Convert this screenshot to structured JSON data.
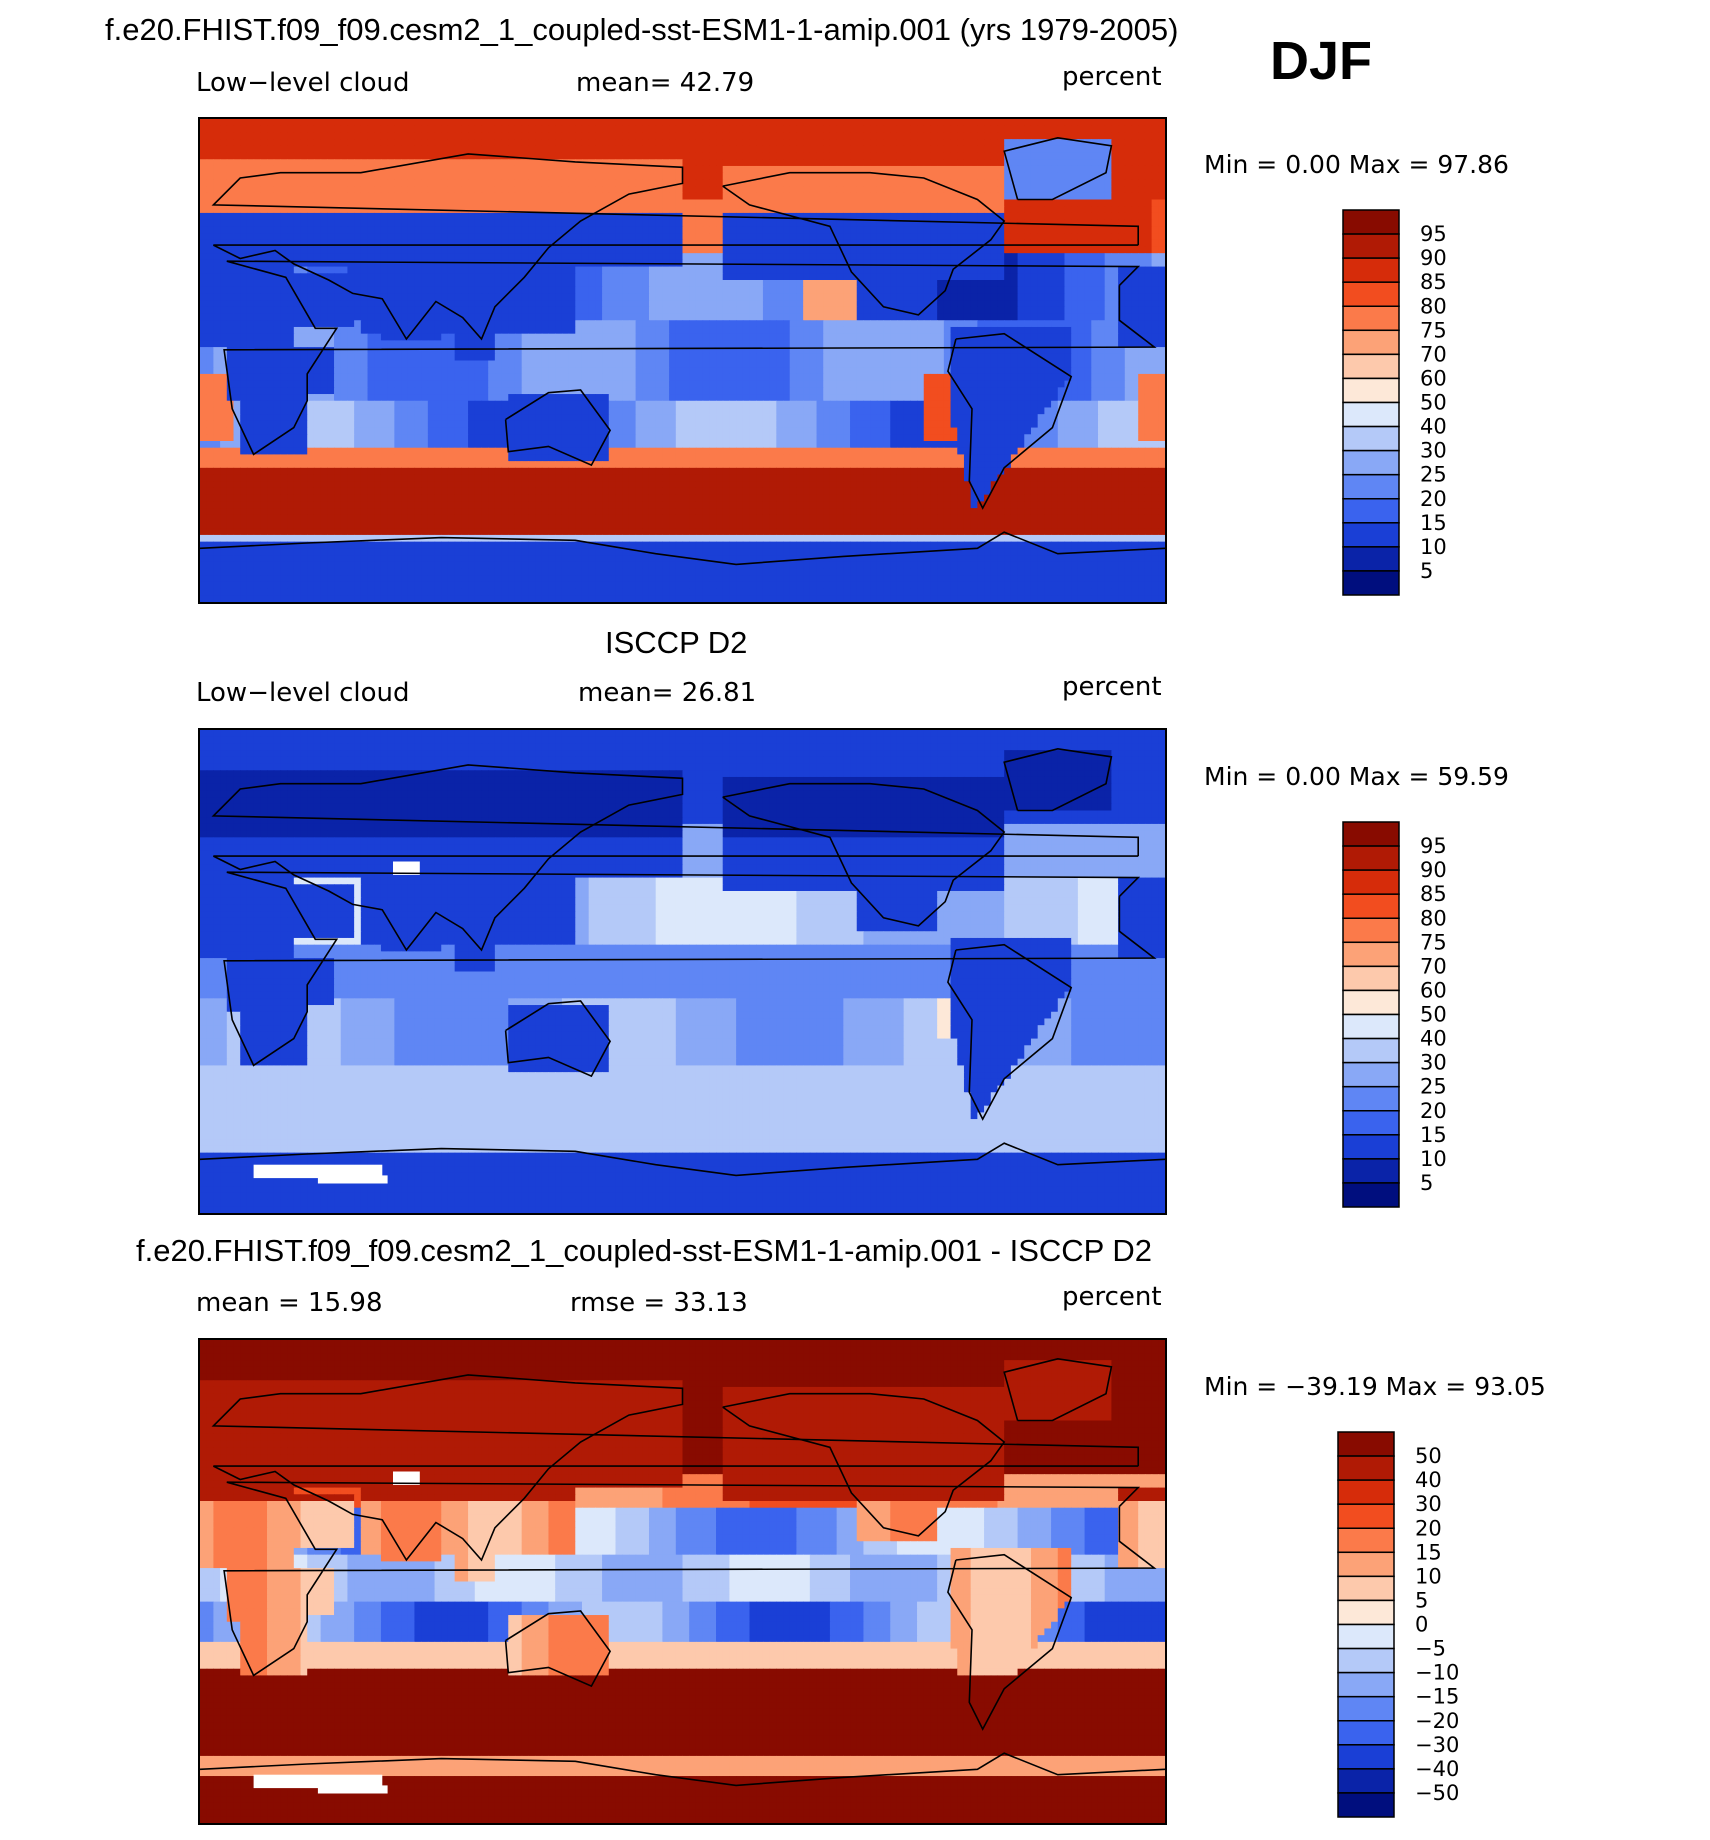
{
  "season": "DJF",
  "chart_data": [
    {
      "type": "heatmap",
      "title": "f.e20.FHIST.f09_f09.cesm2_1_coupled-sst-ESM1-1-amip.001 (yrs 1979-2005)",
      "left_label": "Low−level cloud",
      "stat_label": "mean=   42.79",
      "units": "percent",
      "stat_name": "mean",
      "stat_value": 42.79,
      "min_max_text": "Min =    0.00 Max =   97.86",
      "min": 0.0,
      "max": 97.86,
      "levels": [
        5,
        10,
        15,
        20,
        25,
        30,
        40,
        50,
        60,
        70,
        75,
        80,
        85,
        90,
        95
      ],
      "level_labels": [
        "5",
        "10",
        "15",
        "20",
        "25",
        "30",
        "40",
        "50",
        "60",
        "70",
        "75",
        "80",
        "85",
        "90",
        "95"
      ],
      "colors": [
        "#000e7e",
        "#0a23a8",
        "#1a3fd6",
        "#3a63ee",
        "#5f86f4",
        "#89a8f6",
        "#b4c9f8",
        "#dce8fb",
        "#fde8d8",
        "#fdc9ac",
        "#fca277",
        "#fb7a4a",
        "#f24d1f",
        "#d62c0a",
        "#b01a05",
        "#880b00"
      ],
      "map_type": "model"
    },
    {
      "type": "heatmap",
      "title": "ISCCP D2",
      "left_label": "Low−level cloud",
      "stat_label": "mean=   26.81",
      "units": "percent",
      "stat_name": "mean",
      "stat_value": 26.81,
      "min_max_text": "Min =    0.00 Max =   59.59",
      "min": 0.0,
      "max": 59.59,
      "levels": [
        5,
        10,
        15,
        20,
        25,
        30,
        40,
        50,
        60,
        70,
        75,
        80,
        85,
        90,
        95
      ],
      "level_labels": [
        "5",
        "10",
        "15",
        "20",
        "25",
        "30",
        "40",
        "50",
        "60",
        "70",
        "75",
        "80",
        "85",
        "90",
        "95"
      ],
      "colors": [
        "#000e7e",
        "#0a23a8",
        "#1a3fd6",
        "#3a63ee",
        "#5f86f4",
        "#89a8f6",
        "#b4c9f8",
        "#dce8fb",
        "#fde8d8",
        "#fdc9ac",
        "#fca277",
        "#fb7a4a",
        "#f24d1f",
        "#d62c0a",
        "#b01a05",
        "#880b00"
      ],
      "map_type": "obs"
    },
    {
      "type": "heatmap",
      "title": "f.e20.FHIST.f09_f09.cesm2_1_coupled-sst-ESM1-1-amip.001 - ISCCP D2",
      "left_label": "mean =    15.98",
      "stat_label": "rmse =    33.13",
      "units": "percent",
      "stat_name": "rmse",
      "stat_value": 33.13,
      "mean_value": 15.98,
      "min_max_text": "Min = −39.19 Max =   93.05",
      "min": -39.19,
      "max": 93.05,
      "levels": [
        -50,
        -40,
        -30,
        -20,
        -15,
        -10,
        -5,
        0,
        5,
        10,
        15,
        20,
        30,
        40,
        50
      ],
      "level_labels": [
        "−50",
        "−40",
        "−30",
        "−20",
        "−15",
        "−10",
        "−5",
        "0",
        "5",
        "10",
        "15",
        "20",
        "30",
        "40",
        "50"
      ],
      "colors": [
        "#000e7e",
        "#0a23a8",
        "#1a3fd6",
        "#3a63ee",
        "#5f86f4",
        "#89a8f6",
        "#b4c9f8",
        "#dce8fb",
        "#fde8d8",
        "#fdc9ac",
        "#fca277",
        "#fb7a4a",
        "#f24d1f",
        "#d62c0a",
        "#b01a05",
        "#880b00"
      ],
      "map_type": "diff"
    }
  ]
}
